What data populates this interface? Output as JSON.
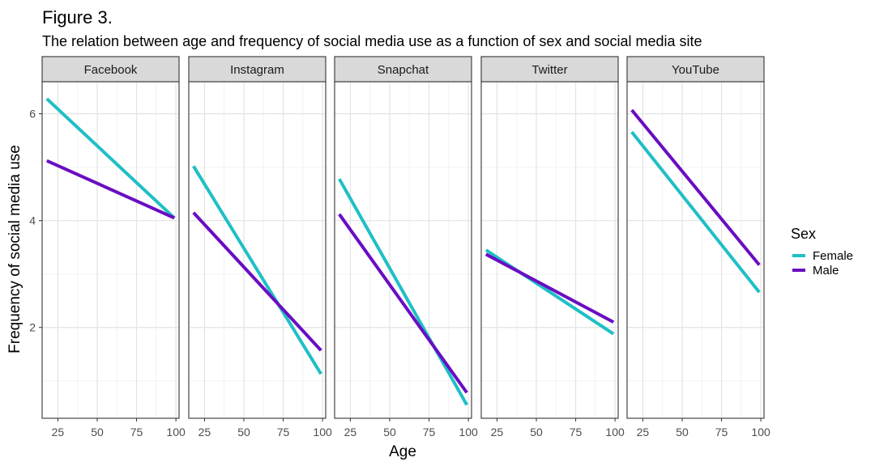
{
  "chart_data": {
    "type": "line",
    "title": "Figure 3.",
    "subtitle": "The relation between age and frequency of social media use as a function of sex and social media site",
    "xlabel": "Age",
    "ylabel": "Frequency of social media use",
    "xlim": [
      15,
      102
    ],
    "ylim": [
      0.3,
      6.6
    ],
    "x_ticks": [
      25,
      50,
      75,
      100
    ],
    "y_ticks": [
      2,
      4,
      6
    ],
    "grid": true,
    "legend": {
      "title": "Sex",
      "position": "right",
      "entries": [
        {
          "label": "Female",
          "color": "#1fbfc6"
        },
        {
          "label": "Male",
          "color": "#6a0dc2"
        }
      ]
    },
    "facets": [
      {
        "label": "Facebook",
        "series": [
          {
            "name": "Female",
            "x": [
              18,
              99
            ],
            "y": [
              6.28,
              4.05
            ]
          },
          {
            "name": "Male",
            "x": [
              18,
              99
            ],
            "y": [
              5.12,
              4.05
            ]
          }
        ]
      },
      {
        "label": "Instagram",
        "series": [
          {
            "name": "Female",
            "x": [
              18,
              99
            ],
            "y": [
              5.02,
              1.13
            ]
          },
          {
            "name": "Male",
            "x": [
              18,
              99
            ],
            "y": [
              4.15,
              1.57
            ]
          }
        ]
      },
      {
        "label": "Snapchat",
        "series": [
          {
            "name": "Female",
            "x": [
              18,
              99
            ],
            "y": [
              4.78,
              0.55
            ]
          },
          {
            "name": "Male",
            "x": [
              18,
              99
            ],
            "y": [
              4.12,
              0.78
            ]
          }
        ]
      },
      {
        "label": "Twitter",
        "series": [
          {
            "name": "Female",
            "x": [
              18,
              99
            ],
            "y": [
              3.45,
              1.88
            ]
          },
          {
            "name": "Male",
            "x": [
              18,
              99
            ],
            "y": [
              3.37,
              2.1
            ]
          }
        ]
      },
      {
        "label": "YouTube",
        "series": [
          {
            "name": "Female",
            "x": [
              18,
              99
            ],
            "y": [
              5.66,
              2.66
            ]
          },
          {
            "name": "Male",
            "x": [
              18,
              99
            ],
            "y": [
              6.07,
              3.17
            ]
          }
        ]
      }
    ]
  }
}
